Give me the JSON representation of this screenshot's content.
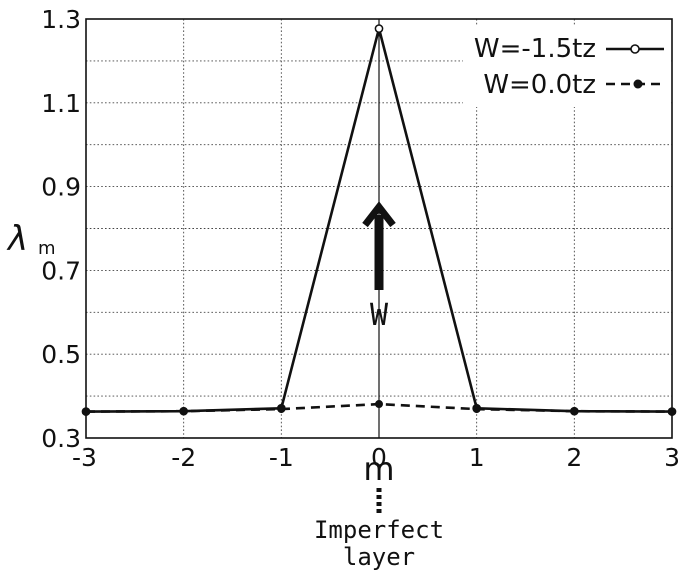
{
  "chart_data": {
    "type": "line",
    "xlabel": "m",
    "ylabel_symbol": "λ",
    "ylabel_subscript": "m",
    "x": [
      -3,
      -2,
      -1,
      0,
      1,
      2,
      3
    ],
    "xlim": [
      -3,
      3
    ],
    "ylim": [
      0.3,
      1.3
    ],
    "x_ticks": [
      "-3",
      "-2",
      "-1",
      "0",
      "1",
      "2",
      "3"
    ],
    "y_ticks": [
      "0.3",
      "0.5",
      "0.7",
      "0.9",
      "1.1",
      "1.3"
    ],
    "grid": true,
    "legend_position": "top-right",
    "series": [
      {
        "name": "W=-1.5tz",
        "values": [
          0.363,
          0.364,
          0.371,
          1.277,
          0.371,
          0.364,
          0.363
        ],
        "line": "solid",
        "marker": "open-circle"
      },
      {
        "name": "W=0.0tz",
        "values": [
          0.363,
          0.364,
          0.369,
          0.381,
          0.369,
          0.364,
          0.363
        ],
        "line": "dashed",
        "marker": "filled-circle"
      }
    ],
    "annotations": {
      "arrow_label": "W",
      "imperfect_line1": "Imperfect",
      "imperfect_line2": "layer"
    }
  }
}
